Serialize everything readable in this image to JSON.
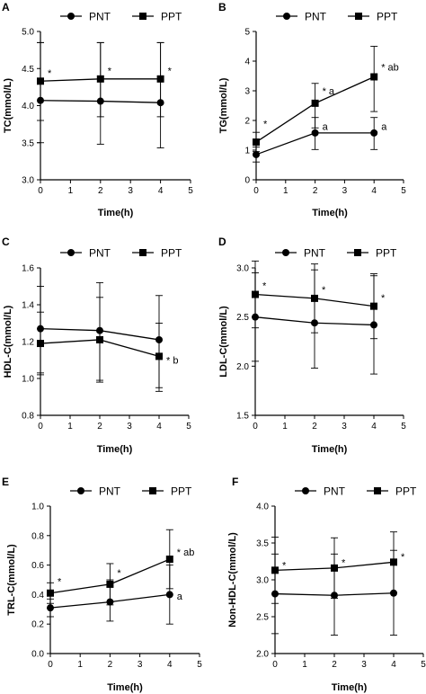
{
  "chart_data": [
    {
      "panel": "A",
      "type": "line",
      "xlabel": "Time(h)",
      "ylabel": "TC(mmol/L)",
      "xlim": [
        0,
        5
      ],
      "ylim": [
        3.0,
        5.0
      ],
      "xticks": [
        "0",
        "1",
        "2",
        "3",
        "4",
        "5"
      ],
      "yticks": [
        "3.0",
        "3.5",
        "4.0",
        "4.5",
        "5.0"
      ],
      "legend": "top",
      "x": [
        0,
        2,
        4
      ],
      "series": [
        {
          "name": "PNT",
          "marker": "circle",
          "values": [
            4.07,
            4.06,
            4.04
          ],
          "err_upper": [
            4.85,
            4.85,
            4.85
          ],
          "err_lower": [
            3.5,
            3.48,
            3.43
          ]
        },
        {
          "name": "PPT",
          "marker": "square",
          "values": [
            4.33,
            4.36,
            4.36
          ],
          "err_upper": [
            4.85,
            4.85,
            4.85
          ],
          "err_lower": [
            3.8,
            3.85,
            3.85
          ]
        }
      ],
      "annotations": [
        {
          "text": "*",
          "x": 0,
          "y": 4.44
        },
        {
          "text": "*",
          "x": 2,
          "y": 4.47
        },
        {
          "text": "*",
          "x": 4,
          "y": 4.47
        }
      ]
    },
    {
      "panel": "B",
      "type": "line",
      "xlabel": "Time(h)",
      "ylabel": "TG(mmol/L)",
      "xlim": [
        0,
        5
      ],
      "ylim": [
        0,
        5
      ],
      "xticks": [
        "0",
        "1",
        "2",
        "3",
        "4",
        "5"
      ],
      "yticks": [
        "0",
        "1",
        "2",
        "3",
        "4",
        "5"
      ],
      "legend": "top",
      "x": [
        0,
        2,
        4
      ],
      "series": [
        {
          "name": "PNT",
          "marker": "circle",
          "values": [
            0.85,
            1.58,
            1.58
          ],
          "err_upper": [
            1.1,
            2.1,
            2.1
          ],
          "err_lower": [
            0.6,
            1.02,
            1.02
          ]
        },
        {
          "name": "PPT",
          "marker": "square",
          "values": [
            1.27,
            2.58,
            3.47
          ],
          "err_upper": [
            1.6,
            3.25,
            4.5
          ],
          "err_lower": [
            0.95,
            1.75,
            2.3
          ]
        }
      ],
      "annotations": [
        {
          "text": "*",
          "x": 0,
          "y": 1.9
        },
        {
          "text": "* a",
          "x": 2,
          "y": 3.0
        },
        {
          "text": "* ab",
          "x": 4,
          "y": 3.8
        },
        {
          "text": "a",
          "x": 2,
          "y": 1.8
        },
        {
          "text": "a",
          "x": 4,
          "y": 1.8
        }
      ]
    },
    {
      "panel": "C",
      "type": "line",
      "xlabel": "Time(h)",
      "ylabel": "HDL-C(mmol/L)",
      "xlim": [
        0,
        5
      ],
      "ylim": [
        0.8,
        1.6
      ],
      "xticks": [
        "0",
        "1",
        "2",
        "3",
        "4",
        "5"
      ],
      "yticks": [
        "0.8",
        "1.0",
        "1.2",
        "1.4",
        "1.6"
      ],
      "legend": "top",
      "x": [
        0,
        2,
        4
      ],
      "series": [
        {
          "name": "PNT",
          "marker": "circle",
          "values": [
            1.27,
            1.26,
            1.21
          ],
          "err_upper": [
            1.5,
            1.52,
            1.45
          ],
          "err_lower": [
            1.03,
            0.99,
            0.95
          ]
        },
        {
          "name": "PPT",
          "marker": "square",
          "values": [
            1.19,
            1.21,
            1.12
          ],
          "err_upper": [
            1.36,
            1.44,
            1.3
          ],
          "err_lower": [
            1.02,
            0.98,
            0.93
          ]
        }
      ],
      "annotations": [
        {
          "text": "* b",
          "x": 4,
          "y": 1.1
        }
      ]
    },
    {
      "panel": "D",
      "type": "line",
      "xlabel": "Time(h)",
      "ylabel": "LDL-C(mmol/L)",
      "xlim": [
        0,
        5
      ],
      "ylim": [
        1.5,
        3.0
      ],
      "xticks": [
        "0",
        "1",
        "2",
        "3",
        "4",
        "5"
      ],
      "yticks": [
        "1.5",
        "2.0",
        "2.5",
        "3.0"
      ],
      "legend": "top",
      "x": [
        0,
        2,
        4
      ],
      "series": [
        {
          "name": "PNT",
          "marker": "circle",
          "values": [
            2.5,
            2.44,
            2.42
          ],
          "err_upper": [
            2.95,
            2.98,
            2.92
          ],
          "err_lower": [
            2.05,
            1.98,
            1.92
          ]
        },
        {
          "name": "PPT",
          "marker": "square",
          "values": [
            2.73,
            2.69,
            2.61
          ],
          "err_upper": [
            3.07,
            3.04,
            2.94
          ],
          "err_lower": [
            2.39,
            2.34,
            2.28
          ]
        }
      ],
      "annotations": [
        {
          "text": "*",
          "x": 0,
          "y": 2.82
        },
        {
          "text": "*",
          "x": 2,
          "y": 2.78
        },
        {
          "text": "*",
          "x": 4,
          "y": 2.7
        }
      ]
    },
    {
      "panel": "E",
      "type": "line",
      "xlabel": "Time(h)",
      "ylabel": "TRL-C(mmol/L)",
      "xlim": [
        0,
        5
      ],
      "ylim": [
        0.0,
        1.0
      ],
      "xticks": [
        "0",
        "1",
        "2",
        "3",
        "4",
        "5"
      ],
      "yticks": [
        "0.0",
        "0.2",
        "0.4",
        "0.6",
        "0.8",
        "1.0"
      ],
      "legend": "top",
      "x": [
        0,
        2,
        4
      ],
      "series": [
        {
          "name": "PNT",
          "marker": "circle",
          "values": [
            0.31,
            0.35,
            0.4
          ],
          "err_upper": [
            0.37,
            0.5,
            0.6
          ],
          "err_lower": [
            0.25,
            0.22,
            0.2
          ]
        },
        {
          "name": "PPT",
          "marker": "square",
          "values": [
            0.41,
            0.47,
            0.64
          ],
          "err_upper": [
            0.48,
            0.61,
            0.84
          ],
          "err_lower": [
            0.34,
            0.33,
            0.44
          ]
        }
      ],
      "annotations": [
        {
          "text": "*",
          "x": 0,
          "y": 0.49
        },
        {
          "text": "*",
          "x": 2,
          "y": 0.55
        },
        {
          "text": "* ab",
          "x": 4,
          "y": 0.69
        },
        {
          "text": "a",
          "x": 4,
          "y": 0.39
        }
      ]
    },
    {
      "panel": "F",
      "type": "line",
      "xlabel": "Time(h)",
      "ylabel": "Non-HDL-C(mmol/L)",
      "xlim": [
        0,
        5
      ],
      "ylim": [
        2.0,
        4.0
      ],
      "xticks": [
        "0",
        "1",
        "2",
        "3",
        "4",
        "5"
      ],
      "yticks": [
        "2.0",
        "2.5",
        "3.0",
        "3.5",
        "4.0"
      ],
      "legend": "top",
      "x": [
        0,
        2,
        4
      ],
      "series": [
        {
          "name": "PNT",
          "marker": "circle",
          "values": [
            2.81,
            2.79,
            2.82
          ],
          "err_upper": [
            3.35,
            3.35,
            3.4
          ],
          "err_lower": [
            2.27,
            2.25,
            2.25
          ]
        },
        {
          "name": "PPT",
          "marker": "square",
          "values": [
            3.13,
            3.16,
            3.24
          ],
          "err_upper": [
            3.58,
            3.57,
            3.65
          ],
          "err_lower": [
            2.68,
            2.75,
            2.83
          ]
        }
      ],
      "annotations": [
        {
          "text": "*",
          "x": 0,
          "y": 3.2
        },
        {
          "text": "*",
          "x": 2,
          "y": 3.24
        },
        {
          "text": "*",
          "x": 4,
          "y": 3.32
        }
      ]
    }
  ]
}
